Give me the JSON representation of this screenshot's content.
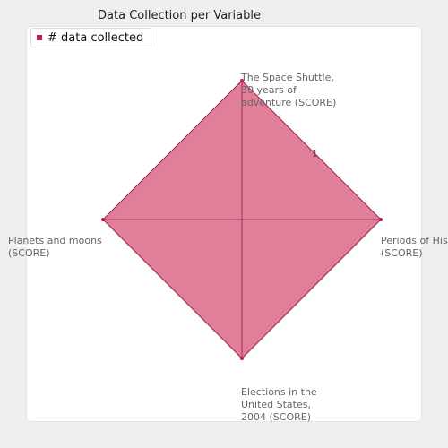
{
  "chart_data": {
    "type": "radar",
    "title": "Data Collection per Variable",
    "axes": [
      {
        "label": "The Space Shuttle,\n30 years of\nadventure (SCORE)"
      },
      {
        "label": "Periods of His\n(SCORE)"
      },
      {
        "label": "Elections in the\nUnited States,\n2004 (SCORE)"
      },
      {
        "label": "Planets and moons\n(SCORE)"
      }
    ],
    "series": [
      {
        "name": "# data collected",
        "values": [
          1,
          1,
          1,
          1
        ]
      }
    ],
    "radial_tick_labels": [
      "1"
    ],
    "rmax": 1,
    "legend_position": "top-left",
    "colors": {
      "fill": "#e17f99",
      "stroke": "#9b2351",
      "marker": "#c31a4c"
    }
  }
}
